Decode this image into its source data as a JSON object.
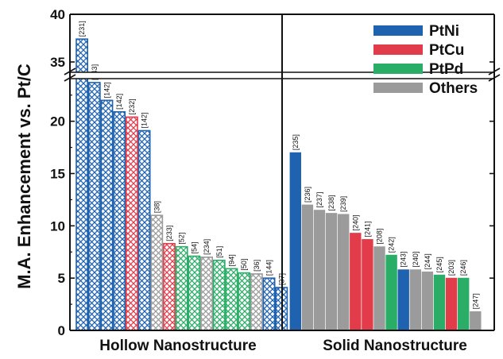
{
  "chart_data": {
    "type": "bar",
    "ylabel": "M.A. Enhancement vs. Pt/C",
    "y_axis": {
      "lower_range": [
        0,
        24
      ],
      "upper_range": [
        34,
        40
      ],
      "break": true,
      "lower_ticks": [
        "0",
        "5",
        "10",
        "15",
        "20"
      ],
      "upper_ticks": [
        "35",
        "40"
      ]
    },
    "colors": {
      "PtNi": "#1f63b0",
      "PtCu": "#e23c4b",
      "PtPd": "#2aad66",
      "Others": "#9b9b9b"
    },
    "legend": {
      "position": "top-right",
      "entries": [
        "PtNi",
        "PtCu",
        "PtPd",
        "Others"
      ]
    },
    "panels": [
      {
        "title": "Hollow Nanostructure",
        "pattern": "crosshatch",
        "bars": [
          {
            "ref": "[231]",
            "value": 37.4,
            "group": "PtNi"
          },
          {
            "ref": "[143]",
            "value": 23.7,
            "group": "PtNi"
          },
          {
            "ref": "[142]",
            "value": 22.0,
            "group": "PtNi"
          },
          {
            "ref": "[142]",
            "value": 20.9,
            "group": "PtNi"
          },
          {
            "ref": "[232]",
            "value": 20.4,
            "group": "PtCu"
          },
          {
            "ref": "[142]",
            "value": 19.1,
            "group": "PtNi"
          },
          {
            "ref": "[38]",
            "value": 11.0,
            "group": "Others"
          },
          {
            "ref": "[233]",
            "value": 8.3,
            "group": "PtCu"
          },
          {
            "ref": "[52]",
            "value": 8.0,
            "group": "PtPd"
          },
          {
            "ref": "[54]",
            "value": 7.1,
            "group": "PtPd"
          },
          {
            "ref": "[234]",
            "value": 7.0,
            "group": "Others"
          },
          {
            "ref": "[51]",
            "value": 6.7,
            "group": "PtPd"
          },
          {
            "ref": "[94]",
            "value": 5.9,
            "group": "PtPd"
          },
          {
            "ref": "[50]",
            "value": 5.5,
            "group": "PtPd"
          },
          {
            "ref": "[36]",
            "value": 5.4,
            "group": "Others"
          },
          {
            "ref": "[144]",
            "value": 5.0,
            "group": "PtNi"
          },
          {
            "ref": "[37]",
            "value": 4.1,
            "group": "PtNi"
          }
        ]
      },
      {
        "title": "Solid Nanostructure",
        "pattern": "solid",
        "bars": [
          {
            "ref": "[235]",
            "value": 17.0,
            "group": "PtNi"
          },
          {
            "ref": "[236]",
            "value": 12.0,
            "group": "Others"
          },
          {
            "ref": "[237]",
            "value": 11.5,
            "group": "Others"
          },
          {
            "ref": "[238]",
            "value": 11.2,
            "group": "Others"
          },
          {
            "ref": "[239]",
            "value": 11.1,
            "group": "Others"
          },
          {
            "ref": "[240]",
            "value": 9.3,
            "group": "PtCu"
          },
          {
            "ref": "[241]",
            "value": 8.7,
            "group": "PtCu"
          },
          {
            "ref": "[208]",
            "value": 8.0,
            "group": "Others"
          },
          {
            "ref": "[242]",
            "value": 7.2,
            "group": "PtPd"
          },
          {
            "ref": "[243]",
            "value": 5.8,
            "group": "PtNi"
          },
          {
            "ref": "[240]",
            "value": 5.8,
            "group": "Others"
          },
          {
            "ref": "[244]",
            "value": 5.6,
            "group": "Others"
          },
          {
            "ref": "[245]",
            "value": 5.3,
            "group": "PtPd"
          },
          {
            "ref": "[203]",
            "value": 5.0,
            "group": "PtCu"
          },
          {
            "ref": "[246]",
            "value": 5.0,
            "group": "PtPd"
          },
          {
            "ref": "[247]",
            "value": 1.8,
            "group": "Others"
          }
        ]
      }
    ]
  }
}
